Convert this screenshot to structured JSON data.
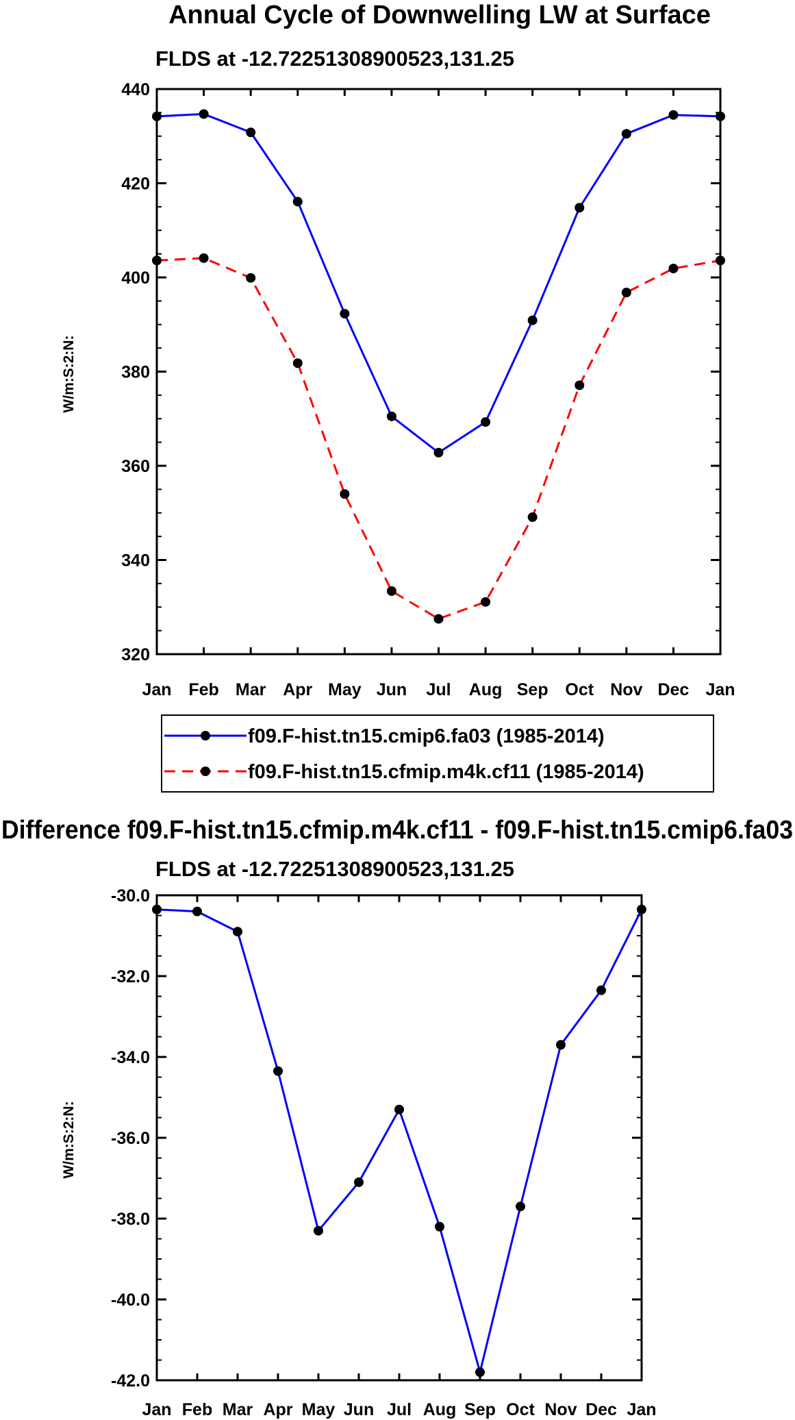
{
  "chart_data": [
    {
      "type": "line",
      "title": "Annual Cycle of Downwelling LW at Surface",
      "subtitle": "FLDS at -12.72251308900523,131.25",
      "ylabel": "W/m:S:2:N:",
      "xlabel": "",
      "categories": [
        "Jan",
        "Feb",
        "Mar",
        "Apr",
        "May",
        "Jun",
        "Jul",
        "Aug",
        "Sep",
        "Oct",
        "Nov",
        "Dec",
        "Jan"
      ],
      "ylim": [
        320,
        440
      ],
      "yticks": [
        "320",
        "340",
        "360",
        "380",
        "400",
        "420",
        "440"
      ],
      "ytick_values": [
        320,
        340,
        360,
        380,
        400,
        420,
        440
      ],
      "series": [
        {
          "name": "f09.F-hist.tn15.cmip6.fa03 (1985-2014)",
          "color": "#0000ff",
          "dash": "solid",
          "values": [
            434.2,
            434.7,
            430.8,
            416.1,
            392.3,
            370.5,
            362.8,
            369.3,
            390.9,
            414.8,
            430.5,
            434.5,
            434.2
          ]
        },
        {
          "name": "f09.F-hist.tn15.cfmip.m4k.cf11 (1985-2014)",
          "color": "#ff0000",
          "dash": "dashed",
          "values": [
            403.6,
            404.1,
            399.9,
            381.8,
            354.0,
            333.4,
            327.5,
            331.1,
            349.1,
            377.1,
            396.8,
            401.9,
            403.6
          ]
        }
      ]
    },
    {
      "type": "line",
      "title": "Difference f09.F-hist.tn15.cfmip.m4k.cf11 - f09.F-hist.tn15.cmip6.fa03",
      "subtitle": "FLDS at -12.72251308900523,131.25",
      "ylabel": "W/m:S:2:N:",
      "xlabel": "",
      "categories": [
        "Jan",
        "Feb",
        "Mar",
        "Apr",
        "May",
        "Jun",
        "Jul",
        "Aug",
        "Sep",
        "Oct",
        "Nov",
        "Dec",
        "Jan"
      ],
      "ylim": [
        -42,
        -30
      ],
      "yticks": [
        "-42.0",
        "-40.0",
        "-38.0",
        "-36.0",
        "-34.0",
        "-32.0",
        "-30.0"
      ],
      "ytick_values": [
        -42,
        -40,
        -38,
        -36,
        -34,
        -32,
        -30
      ],
      "series": [
        {
          "name": "difference",
          "color": "#0000ff",
          "dash": "solid",
          "values": [
            -30.35,
            -30.4,
            -30.9,
            -34.35,
            -38.3,
            -37.1,
            -35.3,
            -38.2,
            -41.8,
            -37.7,
            -33.7,
            -32.35,
            -30.35
          ]
        }
      ]
    }
  ]
}
